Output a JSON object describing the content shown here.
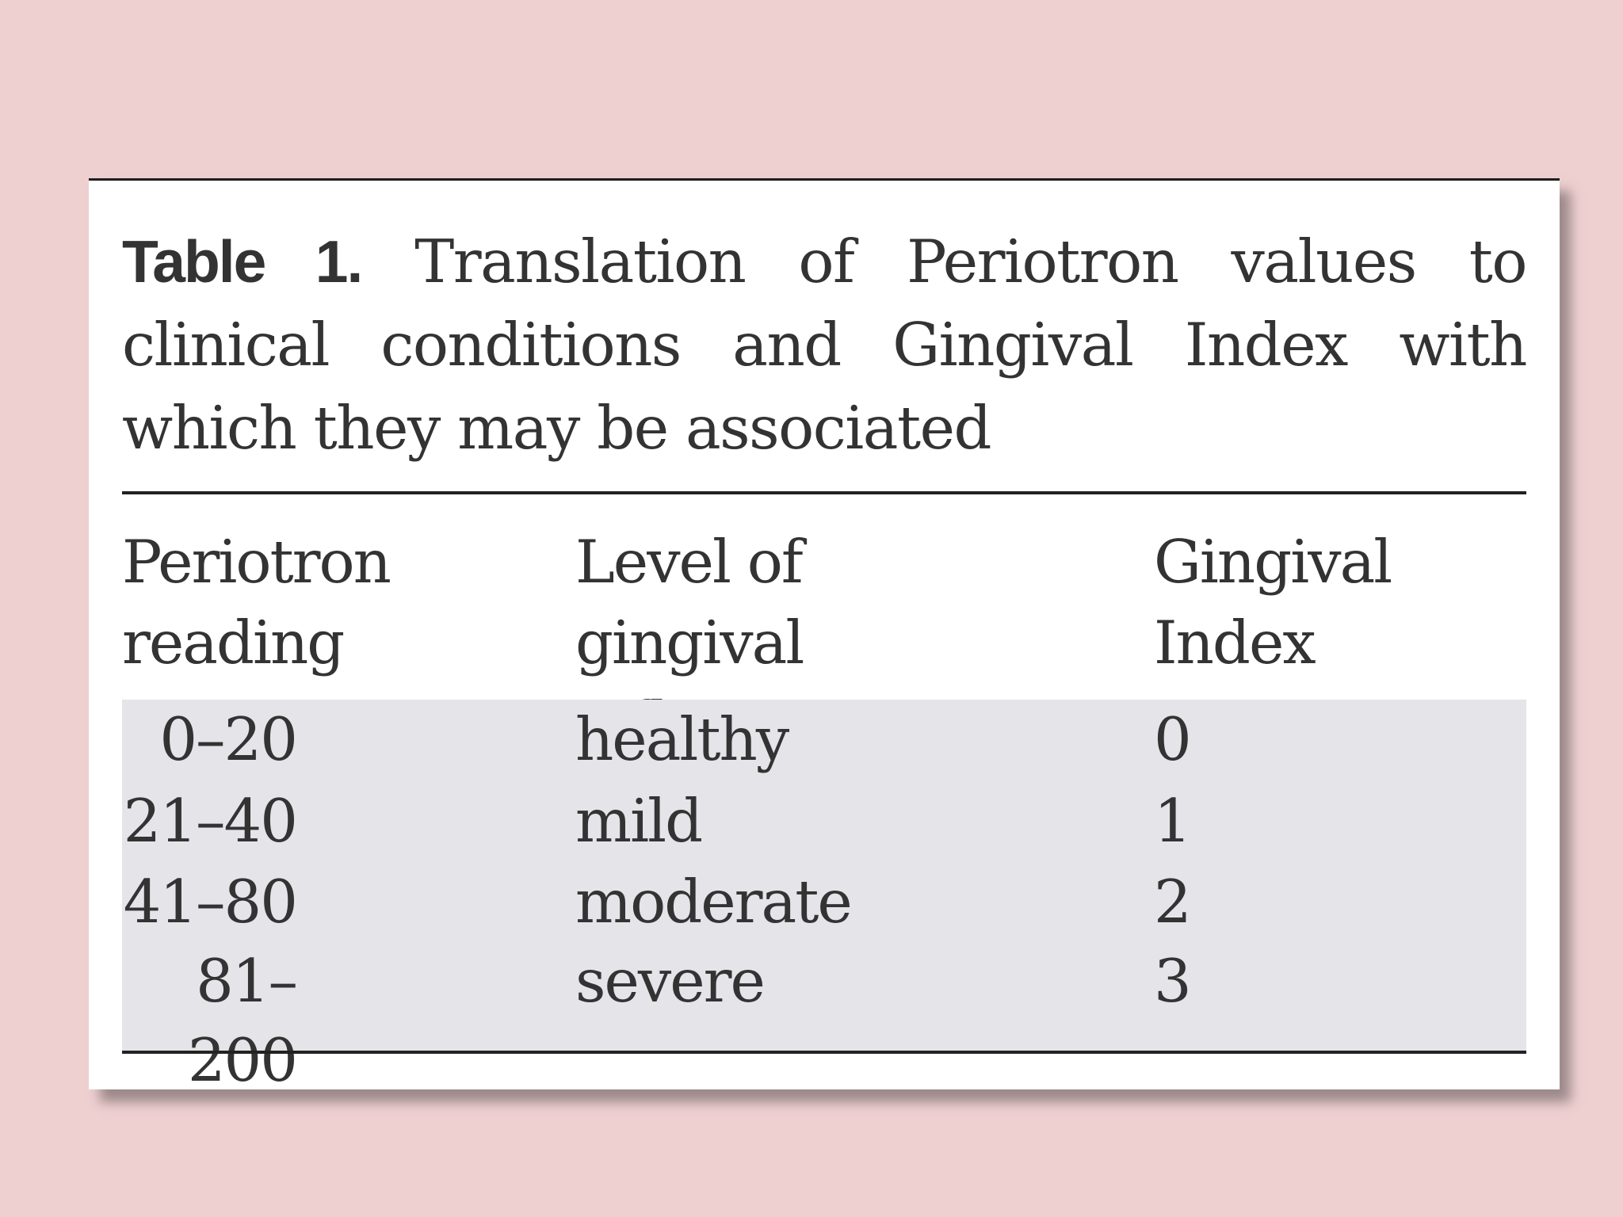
{
  "caption": {
    "label": "Table 1.",
    "text": "Translation of Periotron values to clinical conditions and Gingival Index with which they may be associated"
  },
  "table": {
    "headers": [
      "Periotron reading",
      "Level of gingival inflammation",
      "Gingival Index"
    ],
    "rows": [
      {
        "reading": "0–20",
        "level": "healthy",
        "index": "0"
      },
      {
        "reading": "21–40",
        "level": "mild",
        "index": "1"
      },
      {
        "reading": "41–80",
        "level": "moderate",
        "index": "2"
      },
      {
        "reading": "81–200",
        "level": "severe",
        "index": "3"
      }
    ]
  },
  "colors": {
    "background": "#efd0d1",
    "card": "#ffffff",
    "body_band": "#e4e4e9",
    "text": "#333333"
  }
}
